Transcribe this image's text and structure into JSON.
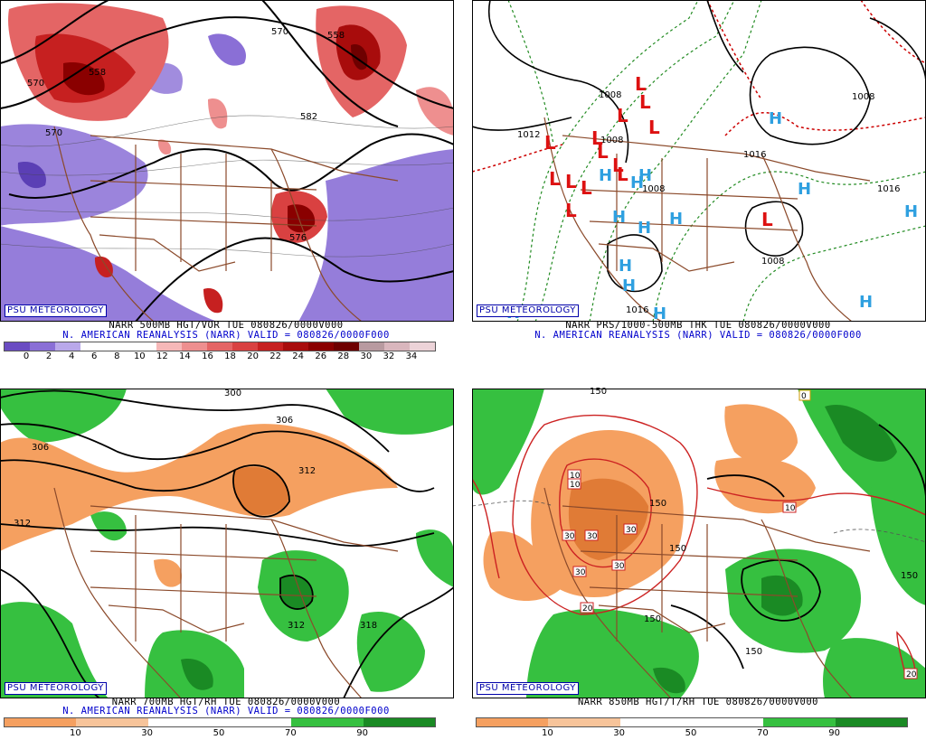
{
  "panels": [
    {
      "id": "p1",
      "line1": "NARR 500MB HGT/VOR TUE 080826/0000V000",
      "line2": "N. AMERICAN REANALYSIS (NARR) VALID = 080826/0000F000",
      "badge": "PSU METEOROLOGY",
      "contour_labels": [
        "570",
        "558",
        "570",
        "558",
        "582",
        "570",
        "576"
      ],
      "colorbar": {
        "ticks": [
          "0",
          "2",
          "4",
          "6",
          "8",
          "10",
          "12",
          "14",
          "16",
          "18",
          "20",
          "22",
          "24",
          "26",
          "28",
          "30",
          "32",
          "34"
        ],
        "colors": [
          "#6a4cc2",
          "#8a6fd6",
          "#b9a8ea",
          "#ffffff",
          "#ffffff",
          "#ffffff",
          "#f6b8b8",
          "#ee8f8f",
          "#e46565",
          "#d94141",
          "#c62020",
          "#a80c0c",
          "#8a0000",
          "#6e0000",
          "#b89aa0",
          "#d9b6bd",
          "#ecd3d8"
        ]
      }
    },
    {
      "id": "p2",
      "line1": "NARR PRS/1000-500MB THK TUE 080826/0000V000",
      "line2": "N. AMERICAN REANALYSIS (NARR) VALID = 080826/0000F000",
      "badge": "PSU METEOROLOGY",
      "contour_labels": [
        "1008",
        "1012",
        "1008",
        "1008",
        "1008",
        "1016",
        "1016",
        "1008",
        "1016"
      ],
      "lows": [
        "L",
        "L",
        "L",
        "L",
        "L",
        "L",
        "L",
        "L",
        "L",
        "L",
        "L",
        "L",
        "L",
        "L"
      ],
      "highs": [
        "H",
        "H",
        "H",
        "H",
        "H",
        "H",
        "H",
        "H",
        "H",
        "H",
        "H",
        "H",
        "H",
        "H"
      ]
    },
    {
      "id": "p3",
      "line1": "NARR 700MB HGT/RH TUE 080826/0000V000",
      "line2": "N. AMERICAN REANALYSIS (NARR) VALID = 080826/0000F000",
      "badge": "PSU METEOROLOGY",
      "contour_labels": [
        "300",
        "306",
        "306",
        "312",
        "312",
        "312",
        "318"
      ],
      "colorbar": {
        "ticks": [
          "10",
          "30",
          "50",
          "70",
          "90"
        ],
        "colors": [
          "#f5a060",
          "#f7c49a",
          "#ffffff",
          "#ffffff",
          "#36c040",
          "#1a8a24"
        ]
      }
    },
    {
      "id": "p4",
      "line1": "NARR 850MB HGT/T/RH TUE 080826/0000V000",
      "line2": "",
      "badge": "PSU METEOROLOGY",
      "contour_labels": [
        "150",
        "150",
        "150",
        "150",
        "150",
        "150"
      ],
      "temp_labels": [
        "10",
        "10",
        "30",
        "30",
        "30",
        "30",
        "30",
        "20",
        "10",
        "20",
        "0"
      ],
      "colorbar": {
        "ticks": [
          "10",
          "30",
          "50",
          "70",
          "90"
        ],
        "colors": [
          "#f5a060",
          "#f7c49a",
          "#ffffff",
          "#ffffff",
          "#36c040",
          "#1a8a24"
        ]
      }
    }
  ]
}
